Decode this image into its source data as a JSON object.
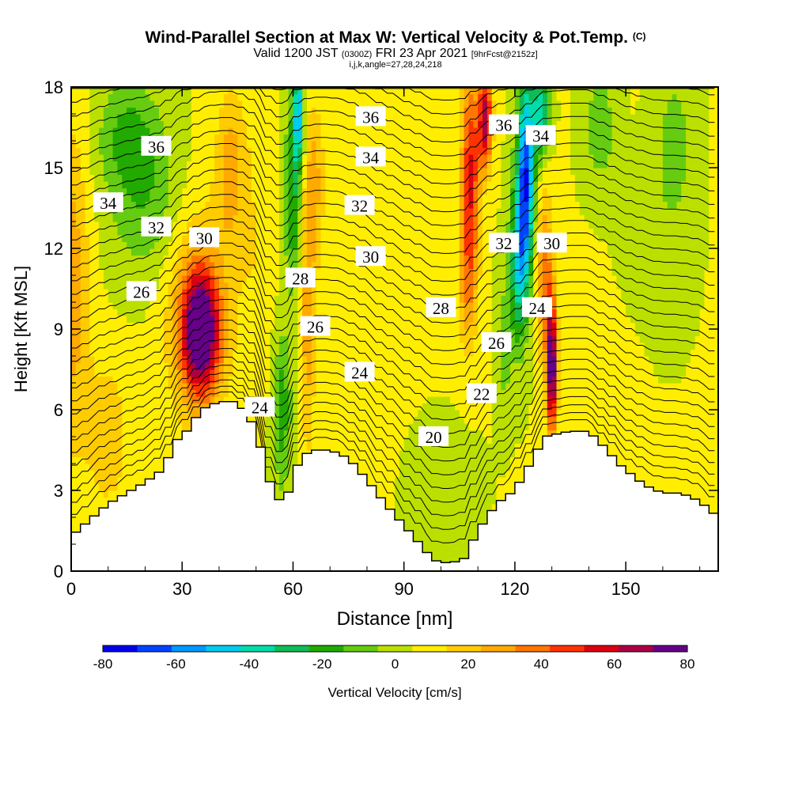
{
  "chart_data": {
    "type": "heatmap",
    "title": "Wind-Parallel Section at Max W: Vertical Velocity & Pot.Temp.",
    "title_mark": "(C)",
    "subtitle_main": "Valid 1200 JST",
    "subtitle_utc": "(0300Z)",
    "subtitle_date": "FRI 23 Apr 2021",
    "subtitle_fcst": "[9hrFcst@2152z]",
    "subtitle2": "i,j,k,angle=27,28,24,218",
    "xlabel": "Distance [nm]",
    "ylabel": "Height [Kft MSL]",
    "xlim": [
      0,
      175
    ],
    "ylim": [
      0,
      18
    ],
    "x_ticks": [
      "0",
      "30",
      "60",
      "90",
      "120",
      "150"
    ],
    "y_ticks": [
      "0",
      "3",
      "6",
      "9",
      "12",
      "15",
      "18"
    ],
    "colorbar": {
      "label": "Vertical Velocity [cm/s]",
      "ticks": [
        "-80",
        "-60",
        "-40",
        "-20",
        "0",
        "20",
        "40",
        "60",
        "80"
      ],
      "min": -80,
      "max": 80,
      "colors": [
        "#0000ee",
        "#0044ff",
        "#0099ff",
        "#00ccee",
        "#00ddaa",
        "#11bb55",
        "#22aa00",
        "#66cc11",
        "#bbe000",
        "#ffee00",
        "#ffcc00",
        "#ffaa00",
        "#ff7700",
        "#ff3300",
        "#dd0011",
        "#aa0044",
        "#660088"
      ]
    },
    "terrain_kft": [
      [
        0,
        1.3
      ],
      [
        5,
        1.9
      ],
      [
        10,
        2.5
      ],
      [
        15,
        2.9
      ],
      [
        20,
        3.3
      ],
      [
        25,
        3.8
      ],
      [
        28,
        4.8
      ],
      [
        32,
        5.3
      ],
      [
        35,
        6
      ],
      [
        40,
        6.3
      ],
      [
        45,
        6.3
      ],
      [
        50,
        5.3
      ],
      [
        52,
        4.2
      ],
      [
        55,
        2.7
      ],
      [
        58,
        2.6
      ],
      [
        60,
        3.5
      ],
      [
        62,
        4.2
      ],
      [
        65,
        4.5
      ],
      [
        70,
        4.5
      ],
      [
        75,
        4.2
      ],
      [
        80,
        3.4
      ],
      [
        85,
        2.5
      ],
      [
        90,
        1.7
      ],
      [
        95,
        0.9
      ],
      [
        98,
        0.4
      ],
      [
        102,
        0.3
      ],
      [
        106,
        0.4
      ],
      [
        110,
        1.5
      ],
      [
        115,
        2.5
      ],
      [
        120,
        3
      ],
      [
        125,
        4.2
      ],
      [
        128,
        5
      ],
      [
        135,
        5.2
      ],
      [
        140,
        5.2
      ],
      [
        145,
        4.5
      ],
      [
        148,
        4
      ],
      [
        155,
        3.2
      ],
      [
        160,
        2.9
      ],
      [
        165,
        2.9
      ],
      [
        170,
        2.6
      ],
      [
        175,
        2
      ]
    ],
    "contour_labels": [
      {
        "text": "36",
        "x": 23,
        "y": 15.8
      },
      {
        "text": "34",
        "x": 10,
        "y": 13.7
      },
      {
        "text": "32",
        "x": 23,
        "y": 12.8
      },
      {
        "text": "30",
        "x": 36,
        "y": 12.4
      },
      {
        "text": "26",
        "x": 19,
        "y": 10.4
      },
      {
        "text": "28",
        "x": 62,
        "y": 10.9
      },
      {
        "text": "26",
        "x": 66,
        "y": 9.1
      },
      {
        "text": "24",
        "x": 51,
        "y": 6.1
      },
      {
        "text": "36",
        "x": 81,
        "y": 16.9
      },
      {
        "text": "34",
        "x": 81,
        "y": 15.4
      },
      {
        "text": "32",
        "x": 78,
        "y": 13.6
      },
      {
        "text": "30",
        "x": 81,
        "y": 11.7
      },
      {
        "text": "28",
        "x": 100,
        "y": 9.8
      },
      {
        "text": "24",
        "x": 78,
        "y": 7.4
      },
      {
        "text": "20",
        "x": 98,
        "y": 5
      },
      {
        "text": "22",
        "x": 111,
        "y": 6.6
      },
      {
        "text": "26",
        "x": 115,
        "y": 8.5
      },
      {
        "text": "24",
        "x": 126,
        "y": 9.8
      },
      {
        "text": "32",
        "x": 117,
        "y": 12.2
      },
      {
        "text": "30",
        "x": 130,
        "y": 12.2
      },
      {
        "text": "36",
        "x": 117,
        "y": 16.6
      },
      {
        "text": "34",
        "x": 127,
        "y": 16.2
      }
    ],
    "velocity_features": [
      {
        "x": 0,
        "y": 10.6,
        "sx": 5,
        "sy": 6,
        "value": 25
      },
      {
        "x": 20,
        "y": 13.8,
        "sx": 10,
        "sy": 3,
        "value": -18
      },
      {
        "x": 15,
        "y": 16.3,
        "sx": 8,
        "sy": 2,
        "value": -18
      },
      {
        "x": 35,
        "y": 8.9,
        "sx": 5,
        "sy": 2.2,
        "value": 75
      },
      {
        "x": 34,
        "y": 9.6,
        "sx": 9,
        "sy": 4.2,
        "value": 22
      },
      {
        "x": 43,
        "y": 15,
        "sx": 4,
        "sy": 3,
        "value": 22
      },
      {
        "x": 57,
        "y": 6,
        "sx": 2.5,
        "sy": 3,
        "value": -25
      },
      {
        "x": 60,
        "y": 14,
        "sx": 2.2,
        "sy": 3.5,
        "value": -30
      },
      {
        "x": 61.5,
        "y": 17,
        "sx": 1.3,
        "sy": 1.8,
        "value": -55
      },
      {
        "x": 64,
        "y": 9.5,
        "sx": 2,
        "sy": 5,
        "value": 25
      },
      {
        "x": 66,
        "y": 14.5,
        "sx": 2.5,
        "sy": 3,
        "value": 20
      },
      {
        "x": 50,
        "y": 12,
        "sx": 5,
        "sy": 6,
        "value": 8
      },
      {
        "x": 80,
        "y": 12,
        "sx": 9,
        "sy": 7,
        "value": 5
      },
      {
        "x": 100,
        "y": 3,
        "sx": 8,
        "sy": 2,
        "value": -8
      },
      {
        "x": 108,
        "y": 14.8,
        "sx": 2.5,
        "sy": 4,
        "value": 48
      },
      {
        "x": 112,
        "y": 16.8,
        "sx": 1.8,
        "sy": 1.8,
        "value": 62
      },
      {
        "x": 107,
        "y": 10.5,
        "sx": 2.5,
        "sy": 2.5,
        "value": 20
      },
      {
        "x": 123,
        "y": 14.8,
        "sx": 2.3,
        "sy": 3.5,
        "value": -70
      },
      {
        "x": 121,
        "y": 11.5,
        "sx": 2.5,
        "sy": 3,
        "value": -45
      },
      {
        "x": 117,
        "y": 8.3,
        "sx": 2,
        "sy": 2.3,
        "value": -15
      },
      {
        "x": 127,
        "y": 17,
        "sx": 2.2,
        "sy": 1.6,
        "value": -45
      },
      {
        "x": 130,
        "y": 7.6,
        "sx": 1.4,
        "sy": 2.5,
        "value": 78
      },
      {
        "x": 128,
        "y": 11,
        "sx": 2.2,
        "sy": 3,
        "value": 35
      },
      {
        "x": 143,
        "y": 16.5,
        "sx": 4,
        "sy": 2,
        "value": -18
      },
      {
        "x": 163,
        "y": 15.8,
        "sx": 5,
        "sy": 2.8,
        "value": -15
      },
      {
        "x": 158,
        "y": 11.5,
        "sx": 8,
        "sy": 3,
        "value": -5
      },
      {
        "x": 145,
        "y": 6,
        "sx": 8,
        "sy": 3,
        "value": 8
      },
      {
        "x": 10,
        "y": 5,
        "sx": 6,
        "sy": 3,
        "value": 15
      }
    ],
    "velocity_baseline": 5,
    "grid": false,
    "legend": "bottom"
  }
}
